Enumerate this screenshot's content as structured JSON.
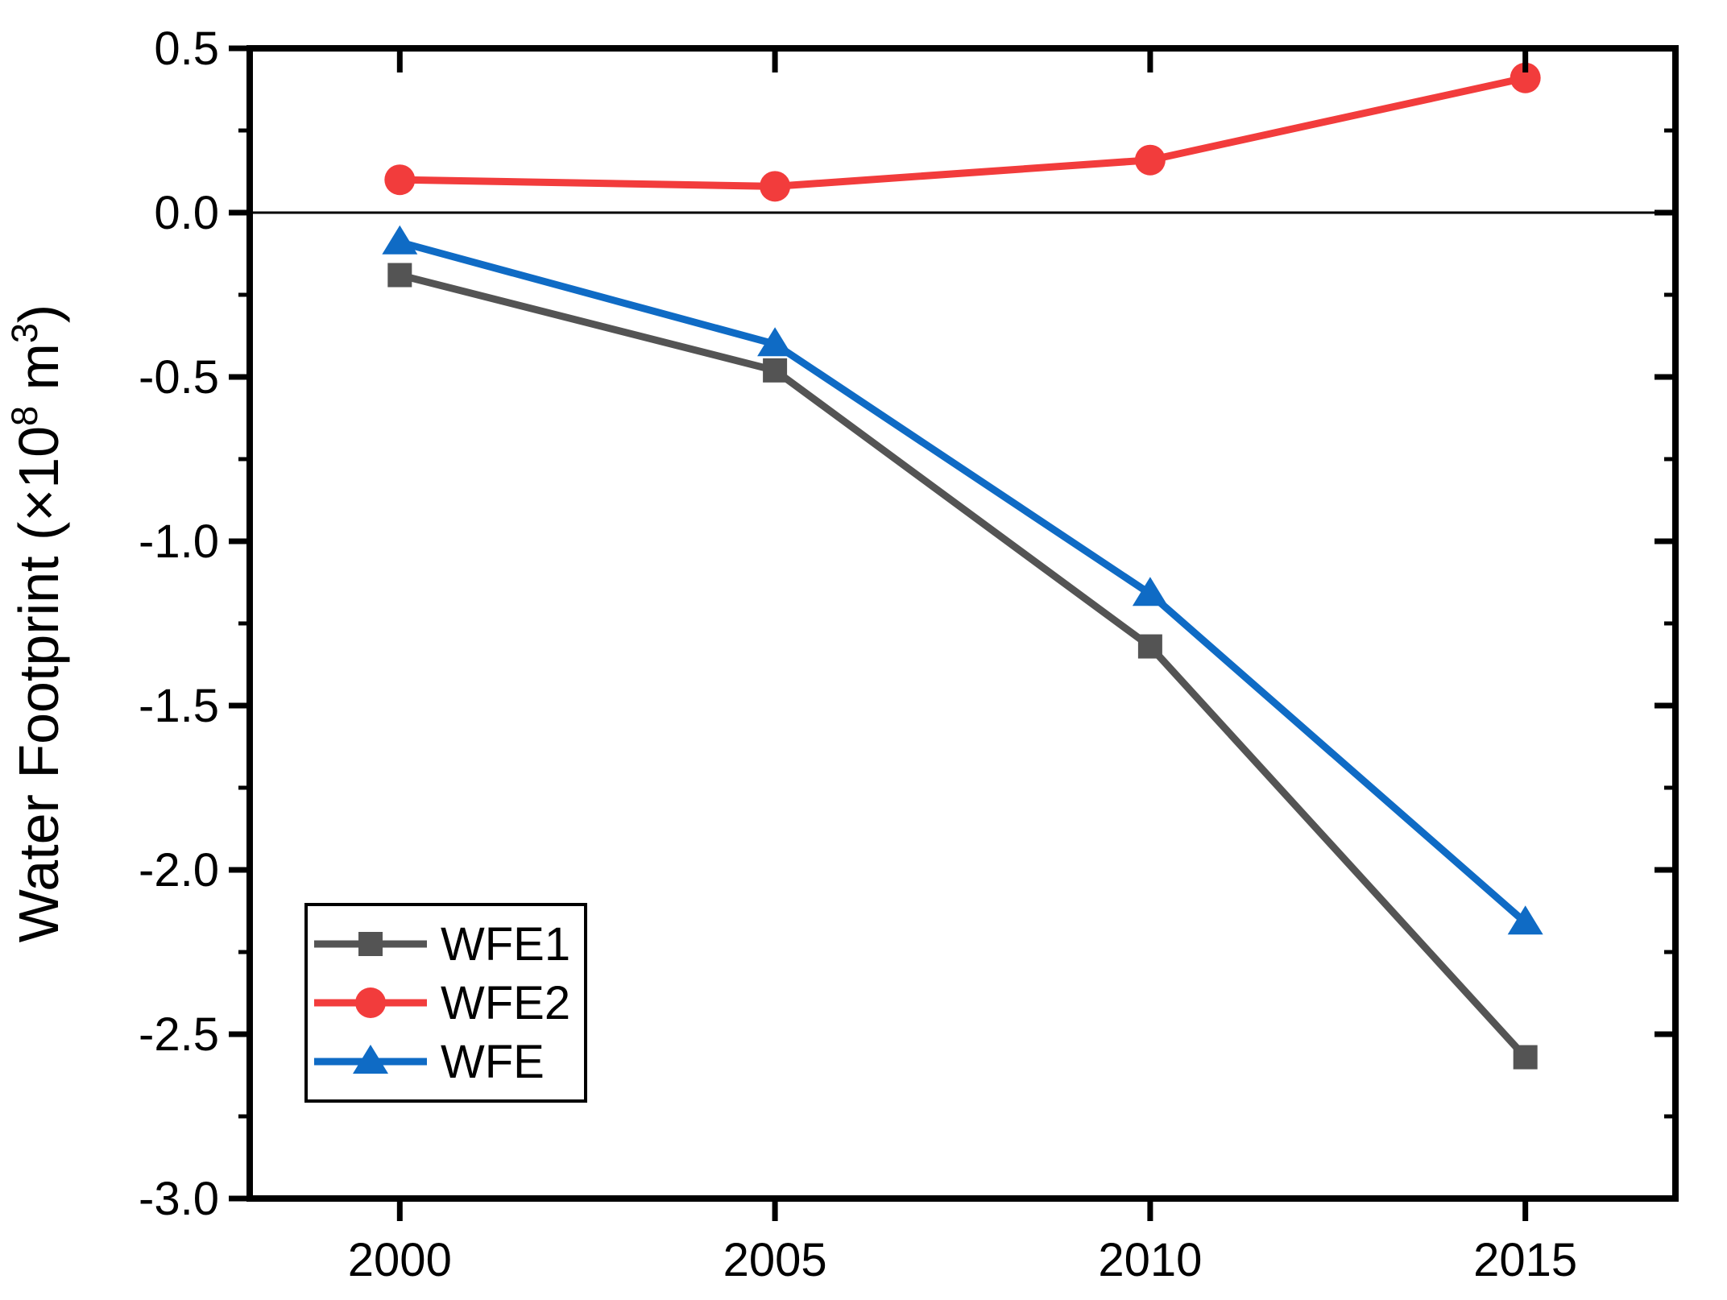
{
  "figure": {
    "background": "#ffffff",
    "frame_color": "#000000"
  },
  "chart_data": {
    "type": "line",
    "title": "",
    "xlabel": "",
    "ylabel": "Water Footprint (×10⁸ m³)",
    "x": [
      2000,
      2005,
      2010,
      2015
    ],
    "x_tick_labels": [
      "2000",
      "2005",
      "2010",
      "2015"
    ],
    "xlim": [
      1998,
      2017
    ],
    "ylim": [
      -3.0,
      0.5
    ],
    "y_major_ticks": [
      0.5,
      0.0,
      -0.5,
      -1.0,
      -1.5,
      -2.0,
      -2.5,
      -3.0
    ],
    "y_tick_labels": [
      "0.5",
      "0.0",
      "-0.5",
      "-1.0",
      "-1.5",
      "-2.0",
      "-2.5",
      "-3.0"
    ],
    "y_minor_ticks": [
      0.25,
      -0.25,
      -0.75,
      -1.25,
      -1.75,
      -2.25,
      -2.75
    ],
    "grid": false,
    "zero_line": true,
    "series": [
      {
        "name": "WFE1",
        "color": "#545454",
        "marker": "square",
        "values": [
          -0.19,
          -0.48,
          -1.32,
          -2.57
        ]
      },
      {
        "name": "WFE2",
        "color": "#F23C3C",
        "marker": "circle",
        "values": [
          0.1,
          0.08,
          0.16,
          0.41
        ]
      },
      {
        "name": "WFE",
        "color": "#0F6BC5",
        "marker": "triangle",
        "values": [
          -0.09,
          -0.4,
          -1.16,
          -2.16
        ]
      }
    ],
    "legend": {
      "position": "lower-left",
      "entries": [
        "WFE1",
        "WFE2",
        "WFE"
      ]
    }
  }
}
